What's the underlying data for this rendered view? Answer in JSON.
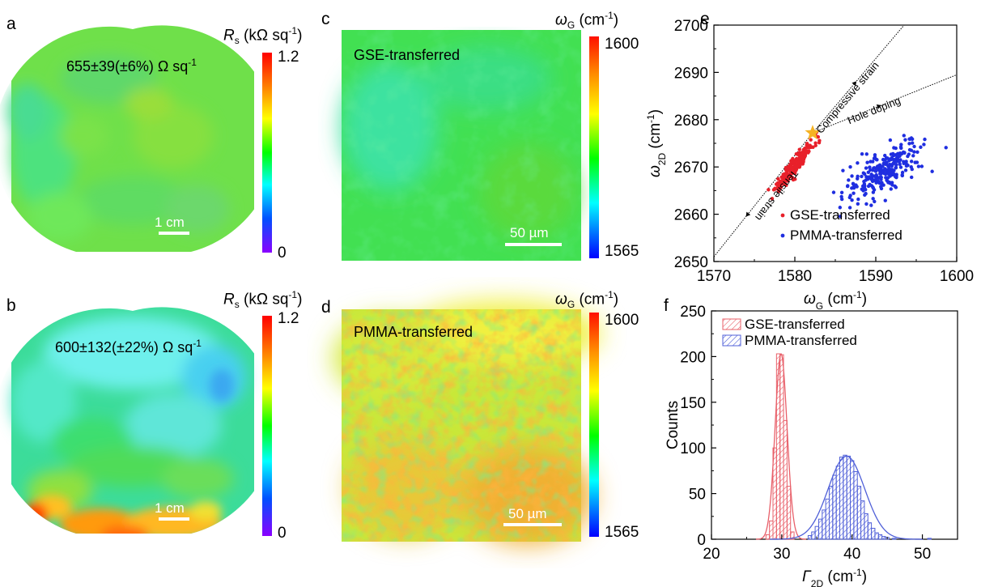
{
  "panels": {
    "a": {
      "letter": "a",
      "annotation": "655±39(±6%) Ω sq",
      "annotation_sup": "-1",
      "scale_label": "1 cm",
      "colorbar": {
        "title_var": "R",
        "title_sub": "s",
        "title_unit": "(kΩ sq",
        "title_unit_sup": "-1",
        "title_close": ")",
        "max": "1.2",
        "min": "0"
      }
    },
    "b": {
      "letter": "b",
      "annotation": "600±132(±22%) Ω sq",
      "annotation_sup": "-1",
      "scale_label": "1 cm",
      "colorbar": {
        "title_var": "R",
        "title_sub": "s",
        "title_unit": "(kΩ sq",
        "title_unit_sup": "-1",
        "title_close": ")",
        "max": "1.2",
        "min": "0"
      }
    },
    "c": {
      "letter": "c",
      "label": "GSE-transferred",
      "scale_label": "50 µm",
      "colorbar": {
        "title_var": "ω",
        "title_sub": "G",
        "title_unit": "(cm",
        "title_unit_sup": "-1",
        "title_close": ")",
        "max": "1600",
        "min": "1565"
      }
    },
    "d": {
      "letter": "d",
      "label": "PMMA-transferred",
      "scale_label": "50 µm",
      "colorbar": {
        "title_var": "ω",
        "title_sub": "G",
        "title_unit": "(cm",
        "title_unit_sup": "-1",
        "title_close": ")",
        "max": "1600",
        "min": "1565"
      }
    },
    "e": {
      "letter": "e"
    },
    "f": {
      "letter": "f"
    }
  },
  "chart_data": [
    {
      "id": "e",
      "type": "scatter",
      "xlabel_var": "ω",
      "xlabel_sub": "G",
      "xlabel_unit": "(cm",
      "xlabel_sup": "-1",
      "xlabel_close": ")",
      "ylabel_var": "ω",
      "ylabel_sub": "2D",
      "ylabel_unit": "(cm",
      "ylabel_sup": "-1",
      "ylabel_close": ")",
      "xlim": [
        1570,
        1600
      ],
      "ylim": [
        2650,
        2700
      ],
      "xticks": [
        "1570",
        "1580",
        "1590",
        "1600"
      ],
      "yticks": [
        "2650",
        "2660",
        "2670",
        "2680",
        "2690",
        "2700"
      ],
      "legend_position": "bottom-right",
      "star": {
        "x": 1582.2,
        "y": 2677.2,
        "color": "#f5b324"
      },
      "lines": [
        {
          "label": "Tensile strain",
          "x1": 1570,
          "y1": 2651,
          "x2": 1582.2,
          "y2": 2677.2
        },
        {
          "label": "Compressive strain",
          "x1": 1582.2,
          "y1": 2677.2,
          "x2": 1593.5,
          "y2": 2700
        },
        {
          "label": "Hole doping",
          "x1": 1582.2,
          "y1": 2677.2,
          "x2": 1600,
          "y2": 2689.5
        }
      ],
      "series": [
        {
          "name": "GSE-transferred",
          "color": "#e8202a",
          "center": [
            1580.0,
            2670.2
          ],
          "spread_x": 1.4,
          "slope": 2.1,
          "spread_y": 0.9,
          "n": 180
        },
        {
          "name": "PMMA-transferred",
          "color": "#1f2ee0",
          "center": [
            1591.0,
            2669.5
          ],
          "spread_x": 2.4,
          "slope": 0.9,
          "spread_y": 2.0,
          "n": 260
        }
      ]
    },
    {
      "id": "f",
      "type": "bar",
      "xlabel_var": "Γ",
      "xlabel_sub": "2D",
      "xlabel_unit": "(cm",
      "xlabel_sup": "-1",
      "xlabel_close": ")",
      "ylabel": "Counts",
      "xlim": [
        20,
        55
      ],
      "ylim": [
        0,
        250
      ],
      "xticks": [
        "20",
        "30",
        "40",
        "50"
      ],
      "yticks": [
        "0",
        "50",
        "100",
        "150",
        "200",
        "250"
      ],
      "legend_position": "top-left",
      "bin_width": 0.5,
      "series": [
        {
          "name": "GSE-transferred",
          "color": "#e8606a",
          "bins": [
            {
              "x": 28.0,
              "v": 5
            },
            {
              "x": 28.5,
              "v": 20
            },
            {
              "x": 29.0,
              "v": 100
            },
            {
              "x": 29.5,
              "v": 203
            },
            {
              "x": 30.0,
              "v": 202
            },
            {
              "x": 30.5,
              "v": 130
            },
            {
              "x": 31.0,
              "v": 58
            },
            {
              "x": 31.5,
              "v": 8
            }
          ],
          "fit": {
            "mu": 29.9,
            "sigma": 0.85,
            "amp": 203
          }
        },
        {
          "name": "PMMA-transferred",
          "color": "#5060d8",
          "bins": [
            {
              "x": 34.0,
              "v": 4
            },
            {
              "x": 34.5,
              "v": 8
            },
            {
              "x": 35.0,
              "v": 14
            },
            {
              "x": 35.5,
              "v": 22
            },
            {
              "x": 36.0,
              "v": 32
            },
            {
              "x": 36.5,
              "v": 44
            },
            {
              "x": 37.0,
              "v": 58
            },
            {
              "x": 37.5,
              "v": 70
            },
            {
              "x": 38.0,
              "v": 80
            },
            {
              "x": 38.5,
              "v": 90
            },
            {
              "x": 39.0,
              "v": 92
            },
            {
              "x": 39.5,
              "v": 91
            },
            {
              "x": 40.0,
              "v": 86
            },
            {
              "x": 40.5,
              "v": 74
            },
            {
              "x": 41.0,
              "v": 58
            },
            {
              "x": 41.5,
              "v": 42
            },
            {
              "x": 42.0,
              "v": 28
            },
            {
              "x": 42.5,
              "v": 18
            },
            {
              "x": 43.0,
              "v": 12
            },
            {
              "x": 43.5,
              "v": 7
            },
            {
              "x": 44.0,
              "v": 5
            },
            {
              "x": 44.5,
              "v": 3
            },
            {
              "x": 45.0,
              "v": 2
            },
            {
              "x": 46.0,
              "v": 1
            },
            {
              "x": 51.0,
              "v": 1
            }
          ],
          "fit": {
            "mu": 39.2,
            "sigma": 2.6,
            "amp": 91
          }
        }
      ]
    }
  ]
}
